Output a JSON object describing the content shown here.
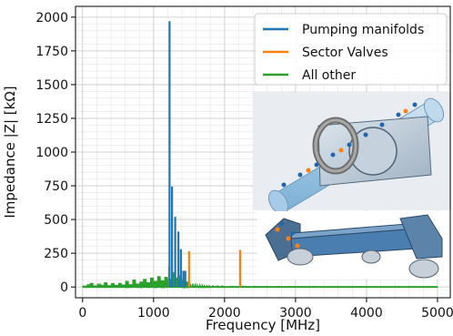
{
  "chart_data": {
    "type": "line",
    "title": "",
    "xlabel": "Frequency [MHz]",
    "ylabel": "Impedance |Z| [kΩ]",
    "xlim": [
      -100,
      5180
    ],
    "ylim": [
      -80,
      2080
    ],
    "xticks": [
      0,
      1000,
      2000,
      3000,
      4000,
      5000
    ],
    "yticks": [
      0,
      250,
      500,
      750,
      1000,
      1250,
      1500,
      1750,
      2000
    ],
    "grid": "major and minor",
    "legend_position": "top-right",
    "series": [
      {
        "name": "Pumping manifolds",
        "color": "#1f77b4",
        "style": "spikes",
        "points": [
          [
            1225,
            1970
          ],
          [
            1260,
            745
          ],
          [
            1305,
            520
          ],
          [
            1350,
            410
          ],
          [
            1385,
            280
          ],
          [
            1420,
            120
          ],
          [
            1447,
            120
          ]
        ]
      },
      {
        "name": "Sector Valves",
        "color": "#ff7f0e",
        "style": "spikes",
        "points": [
          [
            1220,
            150
          ],
          [
            1500,
            265
          ],
          [
            2220,
            275
          ]
        ]
      },
      {
        "name": "All other",
        "color": "#2ca02c",
        "style": "noise",
        "points": [
          [
            0,
            5
          ],
          [
            60,
            20
          ],
          [
            100,
            30
          ],
          [
            150,
            10
          ],
          [
            200,
            25
          ],
          [
            260,
            15
          ],
          [
            300,
            35
          ],
          [
            350,
            12
          ],
          [
            400,
            28
          ],
          [
            450,
            15
          ],
          [
            500,
            30
          ],
          [
            550,
            18
          ],
          [
            600,
            45
          ],
          [
            650,
            20
          ],
          [
            700,
            55
          ],
          [
            750,
            25
          ],
          [
            800,
            40
          ],
          [
            850,
            60
          ],
          [
            900,
            35
          ],
          [
            950,
            70
          ],
          [
            1000,
            45
          ],
          [
            1050,
            80
          ],
          [
            1100,
            50
          ],
          [
            1150,
            75
          ],
          [
            1200,
            60
          ],
          [
            1250,
            110
          ],
          [
            1300,
            70
          ],
          [
            1350,
            85
          ],
          [
            1400,
            50
          ],
          [
            1450,
            40
          ],
          [
            1500,
            25
          ],
          [
            1600,
            15
          ],
          [
            1700,
            10
          ],
          [
            1800,
            8
          ],
          [
            2000,
            5
          ],
          [
            2500,
            3
          ],
          [
            3000,
            2
          ],
          [
            3500,
            2
          ],
          [
            4000,
            1
          ],
          [
            4500,
            1
          ],
          [
            5000,
            1
          ]
        ]
      }
    ]
  },
  "inset_images": [
    {
      "description_icon": "3d-cad-pumping-manifold-sector-valve"
    },
    {
      "description_icon": "3d-cad-beamline-assembly"
    }
  ]
}
